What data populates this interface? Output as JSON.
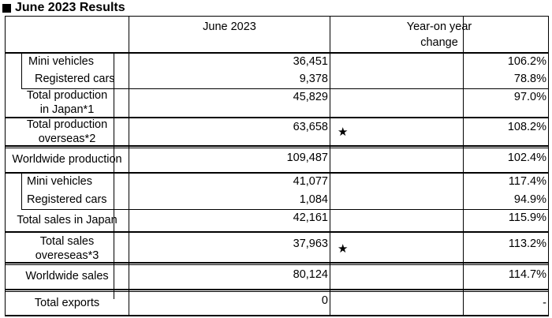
{
  "title": "June 2023 Results",
  "header": {
    "col1": "June 2023",
    "col2_line1": "Year-on year",
    "col2_line2": "change"
  },
  "rows": {
    "mini1": {
      "label": "Mini vehicles",
      "value": "36,451",
      "change": "106.2%"
    },
    "reg1": {
      "label": "Registered cars",
      "value": "9,378",
      "change": "78.8%"
    },
    "tpj": {
      "label_line1": "Total production",
      "label_line2": "in Japan*1",
      "value": "45,829",
      "change": "97.0%"
    },
    "tpo": {
      "label_line1": "Total production",
      "label_line2": "overseas*2",
      "value": "63,658",
      "marker": "★",
      "change": "108.2%"
    },
    "wp": {
      "label": "Worldwide production",
      "value": "109,487",
      "change": "102.4%"
    },
    "mini2": {
      "label": "Mini vehicles",
      "value": "41,077",
      "change": "117.4%"
    },
    "reg2": {
      "label": "Registered cars",
      "value": "1,084",
      "change": "94.9%"
    },
    "tsj": {
      "label": "Total sales in Japan",
      "value": "42,161",
      "change": "115.9%"
    },
    "tso": {
      "label_line1": "Total sales",
      "label_line2": "overeseas*3",
      "value": "37,963",
      "marker": "★",
      "change": "113.2%"
    },
    "ws": {
      "label": "Worldwide sales",
      "value": "80,124",
      "change": "114.7%"
    },
    "te": {
      "label": "Total exports",
      "value": "0",
      "change": "-"
    }
  }
}
